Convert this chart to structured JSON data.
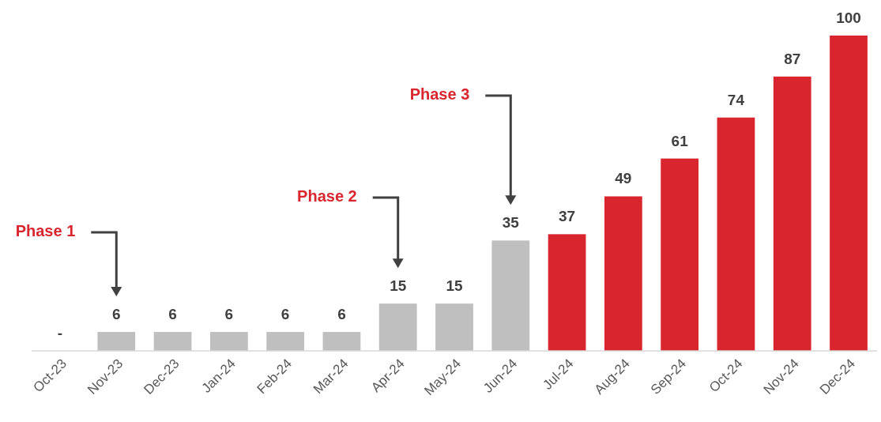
{
  "chart_data": {
    "type": "bar",
    "categories": [
      "Oct-23",
      "Nov-23",
      "Dec-23",
      "Jan-24",
      "Feb-24",
      "Mar-24",
      "Apr-24",
      "May-24",
      "Jun-24",
      "Jul-24",
      "Aug-24",
      "Sep-24",
      "Oct-24",
      "Nov-24",
      "Dec-24"
    ],
    "values": [
      0,
      6,
      6,
      6,
      6,
      6,
      15,
      15,
      35,
      37,
      49,
      61,
      74,
      87,
      100
    ],
    "colors": [
      "#bfbfbf",
      "#bfbfbf",
      "#bfbfbf",
      "#bfbfbf",
      "#bfbfbf",
      "#bfbfbf",
      "#bfbfbf",
      "#bfbfbf",
      "#bfbfbf",
      "#d9262e",
      "#d9262e",
      "#d9262e",
      "#d9262e",
      "#d9262e",
      "#d9262e"
    ],
    "value_labels": [
      "-",
      "6",
      "6",
      "6",
      "6",
      "6",
      "15",
      "15",
      "35",
      "37",
      "49",
      "61",
      "74",
      "87",
      "100"
    ],
    "annotations": [
      "Phase 1",
      "Phase 2",
      "Phase 3"
    ]
  }
}
